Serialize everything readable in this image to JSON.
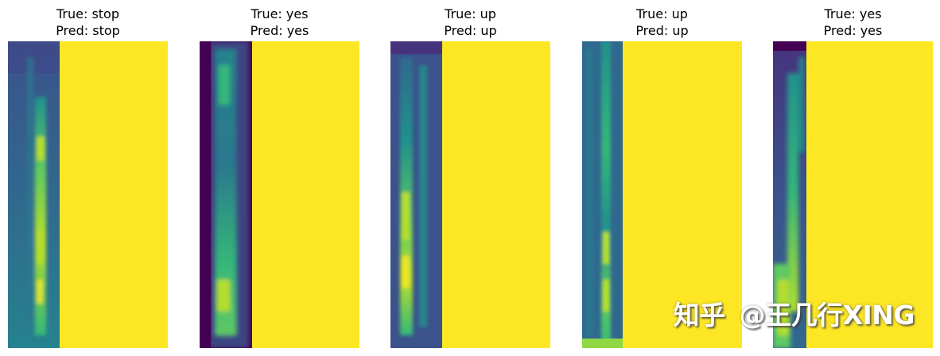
{
  "figure": {
    "panels": [
      {
        "true_label": "True: stop",
        "pred_label": "Pred: stop"
      },
      {
        "true_label": "True: yes",
        "pred_label": "Pred: yes"
      },
      {
        "true_label": "True: up",
        "pred_label": "Pred: up"
      },
      {
        "true_label": "True: up",
        "pred_label": "Pred: up"
      },
      {
        "true_label": "True: yes",
        "pred_label": "Pred: yes"
      }
    ]
  },
  "watermark": {
    "brand": "知乎",
    "handle": "@王几行XING"
  },
  "chart_data": {
    "type": "heatmap",
    "colormap": "viridis",
    "axes_visible": false,
    "panels": [
      {
        "true": "stop",
        "pred": "stop",
        "signal_fraction": 0.32
      },
      {
        "true": "yes",
        "pred": "yes",
        "signal_fraction": 0.33
      },
      {
        "true": "up",
        "pred": "up",
        "signal_fraction": 0.32
      },
      {
        "true": "up",
        "pred": "up",
        "signal_fraction": 0.25
      },
      {
        "true": "yes",
        "pred": "yes",
        "signal_fraction": 0.21
      }
    ],
    "padding_value": "max"
  }
}
